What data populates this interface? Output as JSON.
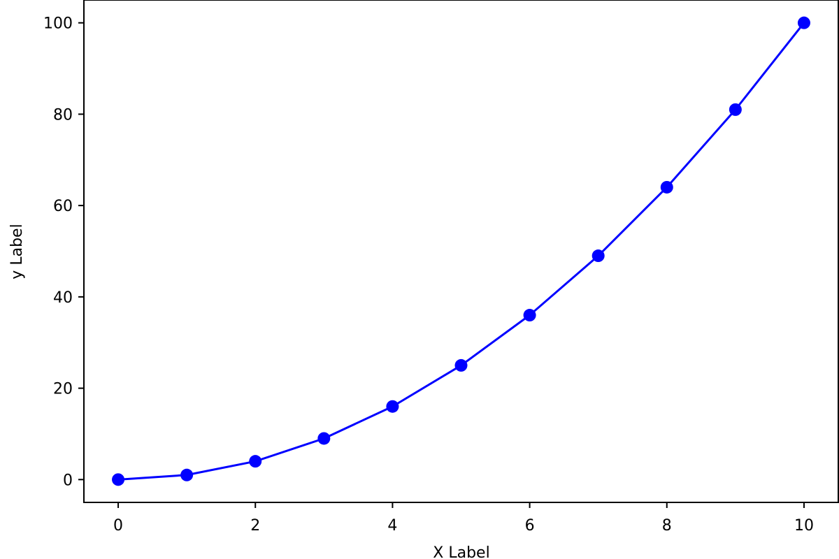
{
  "chart_data": {
    "type": "line",
    "title": "",
    "xlabel": "X Label",
    "ylabel": "y Label",
    "xlim": [
      -0.5,
      10.5
    ],
    "ylim": [
      -5,
      105
    ],
    "xticks": [
      0,
      2,
      4,
      6,
      8,
      10
    ],
    "yticks": [
      0,
      20,
      40,
      60,
      80,
      100
    ],
    "grid": false,
    "legend": false,
    "series": [
      {
        "color": "#0000ff",
        "marker": "circle",
        "x": [
          0,
          1,
          2,
          3,
          4,
          5,
          6,
          7,
          8,
          9,
          10
        ],
        "y": [
          0,
          1,
          4,
          9,
          16,
          25,
          36,
          49,
          64,
          81,
          100
        ]
      }
    ]
  }
}
